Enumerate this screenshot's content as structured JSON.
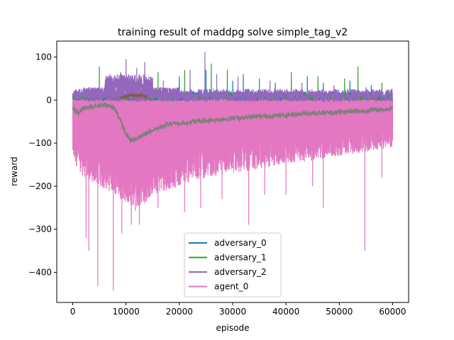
{
  "chart_data": {
    "type": "line",
    "title": "training result of maddpg solve simple_tag_v2",
    "xlabel": "episode",
    "ylabel": "reward",
    "xlim": [
      -3000,
      63000
    ],
    "ylim": [
      -470,
      137
    ],
    "xticks": [
      0,
      10000,
      20000,
      30000,
      40000,
      50000,
      60000
    ],
    "yticks": [
      -400,
      -300,
      -200,
      -100,
      0,
      100
    ],
    "legend_position": "lower center",
    "series": [
      {
        "name": "adversary_0",
        "color": "#1f77b4",
        "baseline": [
          [
            0,
            5
          ],
          [
            60000,
            5
          ]
        ],
        "peaks": [
          [
            500,
            15
          ],
          [
            2000,
            18
          ],
          [
            8000,
            20
          ],
          [
            15000,
            30
          ],
          [
            20000,
            55
          ],
          [
            25000,
            70
          ],
          [
            30000,
            45
          ],
          [
            32000,
            60
          ],
          [
            38000,
            40
          ],
          [
            44000,
            55
          ],
          [
            47000,
            40
          ],
          [
            52000,
            45
          ],
          [
            56000,
            35
          ],
          [
            59000,
            25
          ]
        ]
      },
      {
        "name": "adversary_1",
        "color": "#2ca02c",
        "baseline": [
          [
            0,
            5
          ],
          [
            60000,
            5
          ]
        ],
        "peaks": [
          [
            5000,
            78
          ],
          [
            9000,
            65
          ],
          [
            16000,
            65
          ],
          [
            21000,
            70
          ],
          [
            26000,
            85
          ],
          [
            29000,
            70
          ],
          [
            35000,
            50
          ],
          [
            41000,
            65
          ],
          [
            46000,
            55
          ],
          [
            51000,
            50
          ],
          [
            53500,
            78
          ],
          [
            58000,
            40
          ]
        ]
      },
      {
        "name": "adversary_2",
        "color": "#9467bd",
        "baseline": [
          [
            0,
            5
          ],
          [
            60000,
            5
          ]
        ],
        "peaks": [
          [
            3000,
            20
          ],
          [
            7000,
            60
          ],
          [
            10000,
            95
          ],
          [
            12000,
            75
          ],
          [
            13500,
            88
          ],
          [
            17000,
            45
          ],
          [
            22000,
            70
          ],
          [
            24800,
            112
          ],
          [
            27000,
            60
          ],
          [
            31000,
            55
          ],
          [
            37000,
            45
          ],
          [
            43000,
            40
          ],
          [
            49000,
            35
          ],
          [
            55000,
            30
          ]
        ]
      },
      {
        "name": "agent_0",
        "color": "#e377c2",
        "upper": [
          [
            0,
            5
          ],
          [
            60000,
            5
          ]
        ],
        "lower_envelope": [
          [
            0,
            -140
          ],
          [
            2000,
            -180
          ],
          [
            5000,
            -200
          ],
          [
            8000,
            -220
          ],
          [
            10000,
            -240
          ],
          [
            12000,
            -260
          ],
          [
            15000,
            -220
          ],
          [
            20000,
            -200
          ],
          [
            25000,
            -180
          ],
          [
            30000,
            -170
          ],
          [
            35000,
            -160
          ],
          [
            40000,
            -150
          ],
          [
            45000,
            -140
          ],
          [
            50000,
            -130
          ],
          [
            55000,
            -120
          ],
          [
            60000,
            -110
          ]
        ],
        "dips": [
          [
            2500,
            -320
          ],
          [
            3000,
            -350
          ],
          [
            4700,
            -432
          ],
          [
            7600,
            -442
          ],
          [
            9200,
            -310
          ],
          [
            11000,
            -290
          ],
          [
            12500,
            -290
          ],
          [
            16000,
            -250
          ],
          [
            21000,
            -260
          ],
          [
            24000,
            -250
          ],
          [
            28000,
            -230
          ],
          [
            33000,
            -290
          ],
          [
            36000,
            -220
          ],
          [
            40000,
            -220
          ],
          [
            45000,
            -200
          ],
          [
            47000,
            -250
          ],
          [
            54800,
            -350
          ],
          [
            58000,
            -180
          ]
        ]
      },
      {
        "color": "#8c564b",
        "points": [
          [
            9000,
            5
          ],
          [
            10000,
            8
          ],
          [
            11000,
            12
          ],
          [
            12000,
            10
          ],
          [
            13000,
            12
          ],
          [
            14000,
            5
          ]
        ]
      },
      {
        "color": "#7f7f7f",
        "points": [
          [
            0,
            -20
          ],
          [
            1000,
            -30
          ],
          [
            2000,
            -20
          ],
          [
            4000,
            -15
          ],
          [
            6000,
            -10
          ],
          [
            8000,
            -20
          ],
          [
            9000,
            -50
          ],
          [
            10000,
            -80
          ],
          [
            11000,
            -95
          ],
          [
            12000,
            -90
          ],
          [
            14000,
            -75
          ],
          [
            16000,
            -65
          ],
          [
            18000,
            -55
          ],
          [
            20000,
            -55
          ],
          [
            22000,
            -50
          ],
          [
            25000,
            -48
          ],
          [
            30000,
            -42
          ],
          [
            35000,
            -38
          ],
          [
            40000,
            -35
          ],
          [
            45000,
            -30
          ],
          [
            50000,
            -28
          ],
          [
            55000,
            -25
          ],
          [
            60000,
            -20
          ]
        ]
      }
    ]
  }
}
